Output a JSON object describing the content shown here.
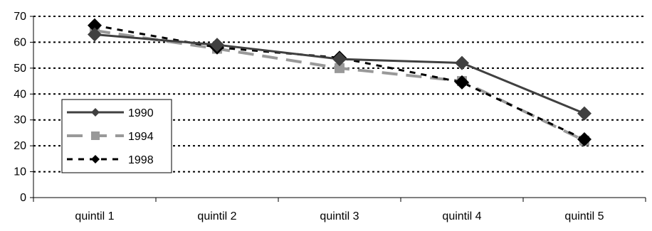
{
  "chart_data": {
    "type": "line",
    "categories": [
      "quintil 1",
      "quintil 2",
      "quintil 3",
      "quintil 4",
      "quintil 5"
    ],
    "ylim": [
      0,
      70
    ],
    "yticks": [
      0,
      10,
      20,
      30,
      40,
      50,
      60,
      70
    ],
    "grid": "horizontal-dotted",
    "legend_position": "left",
    "series": [
      {
        "name": "1990",
        "values": [
          63,
          59,
          53.5,
          52,
          32.5
        ],
        "color": "#404040",
        "style": "solid",
        "marker": "diamond"
      },
      {
        "name": "1994",
        "values": [
          64.5,
          57.5,
          50,
          45,
          22
        ],
        "color": "#999999",
        "style": "dashed",
        "marker": "square"
      },
      {
        "name": "1998",
        "values": [
          66.5,
          58,
          54,
          44.5,
          22.5
        ],
        "color": "#000000",
        "style": "dotted",
        "marker": "diamond"
      }
    ]
  }
}
